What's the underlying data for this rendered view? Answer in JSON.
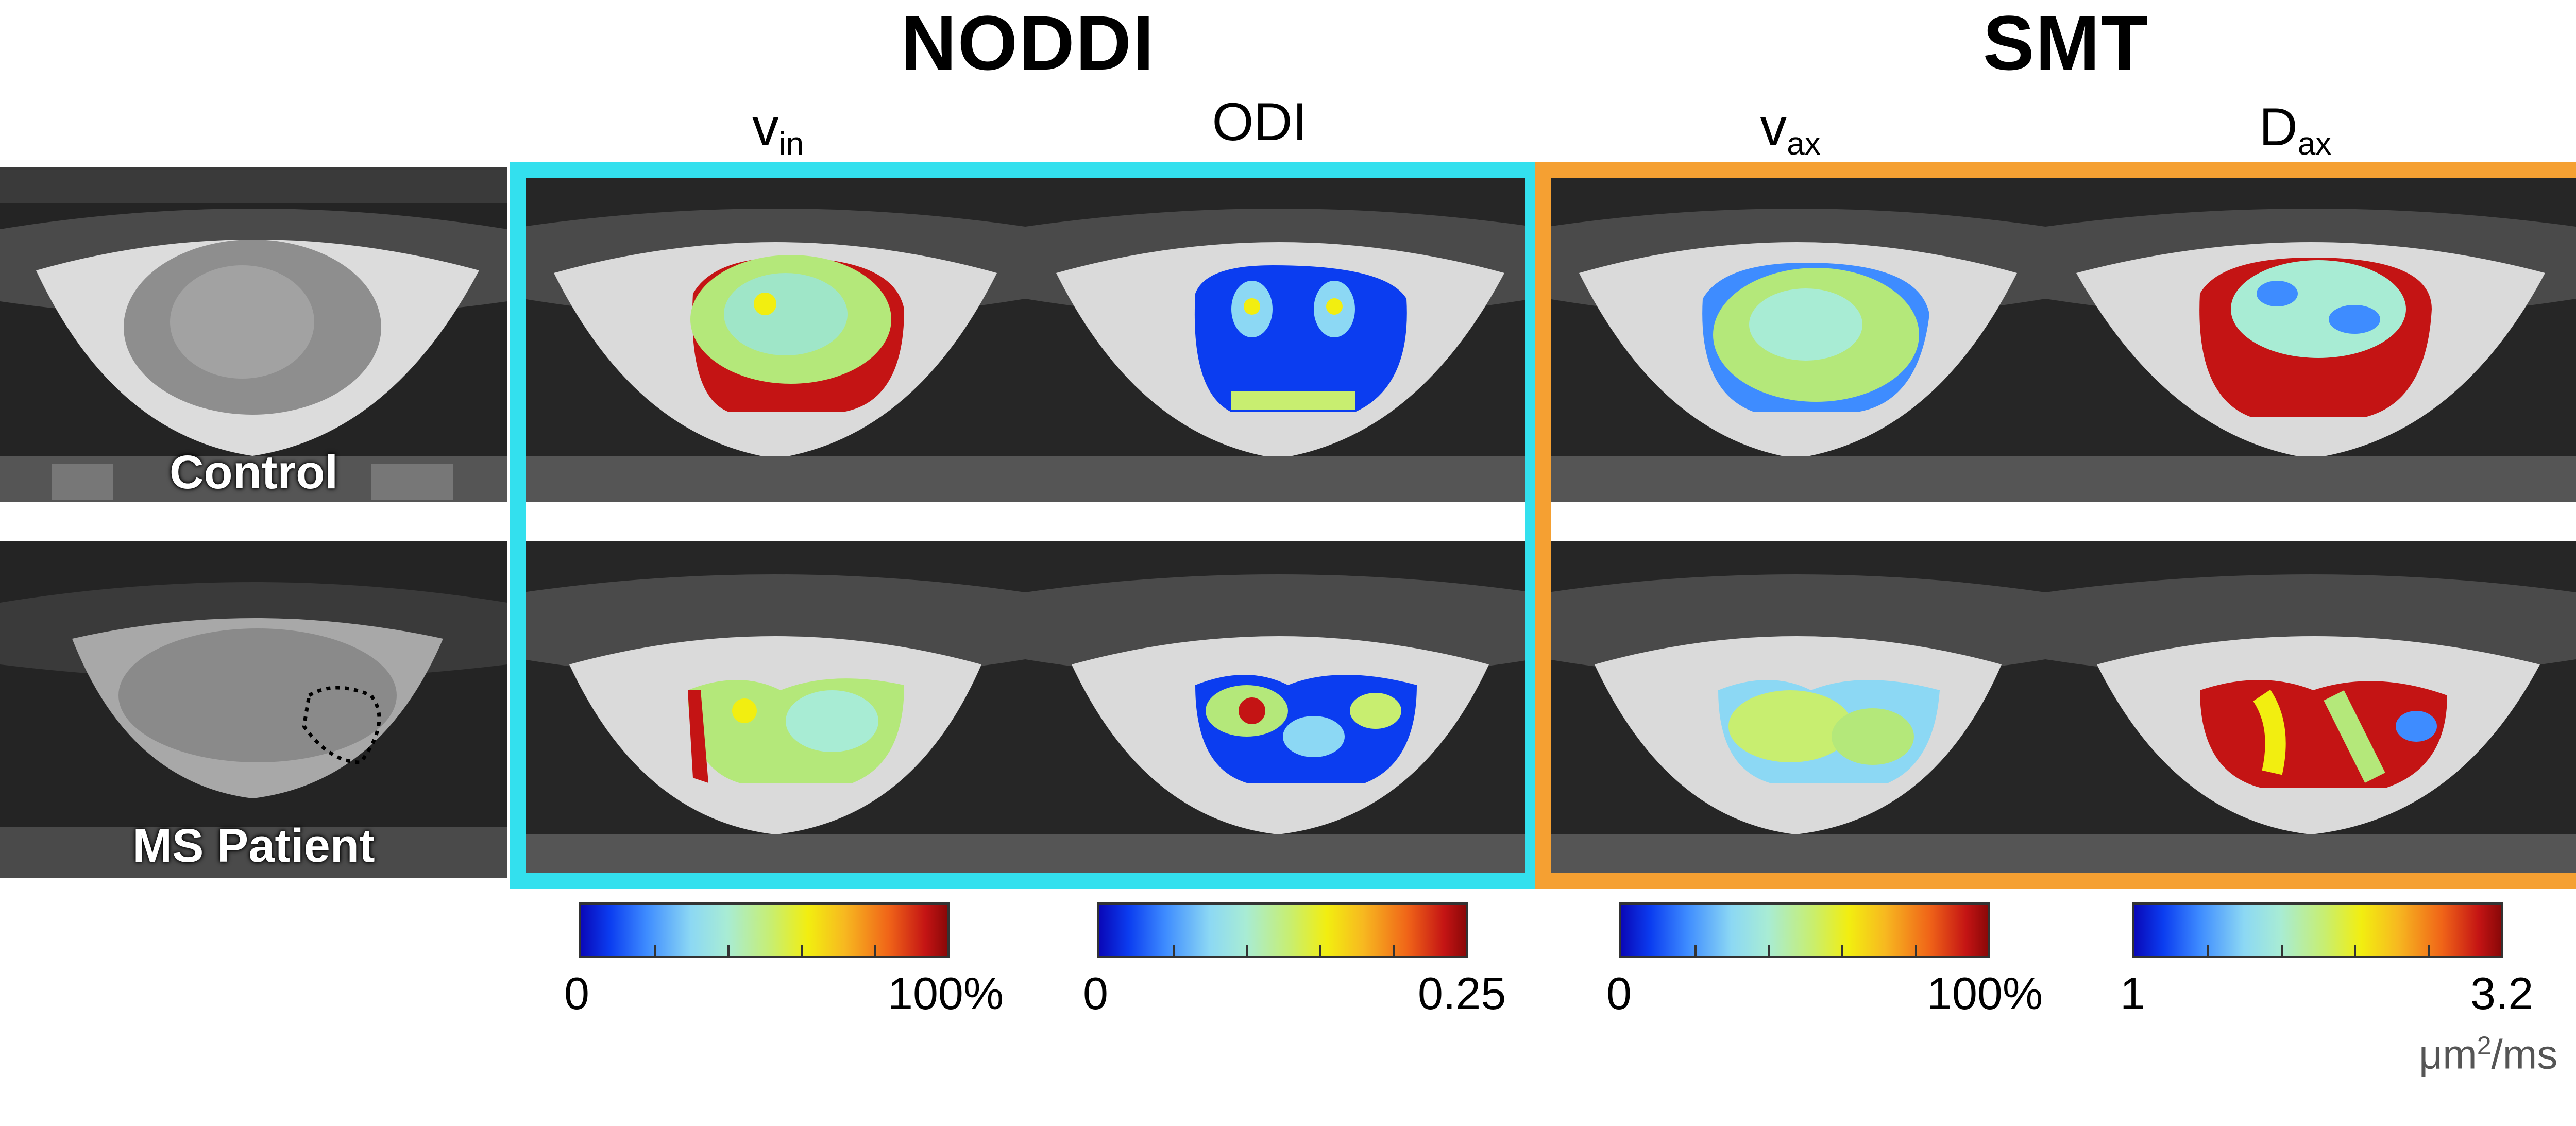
{
  "groups": {
    "noddi": {
      "title": "NODDI",
      "color": "#33e0ee"
    },
    "smt": {
      "title": "SMT",
      "color": "#f5a032"
    }
  },
  "columns": [
    {
      "id": "v_in",
      "main": "v",
      "sub": "in"
    },
    {
      "id": "odi",
      "main": "ODI",
      "sub": ""
    },
    {
      "id": "v_ax",
      "main": "v",
      "sub": "ax"
    },
    {
      "id": "d_ax",
      "main": "D",
      "sub": "ax"
    }
  ],
  "rows": {
    "control": "Control",
    "patient": "MS Patient"
  },
  "colorbars": [
    {
      "min": "0",
      "max": "100%"
    },
    {
      "min": "0",
      "max": "0.25"
    },
    {
      "min": "0",
      "max": "100%"
    },
    {
      "min": "1",
      "max": "3.2"
    }
  ],
  "units": {
    "dax_main": "μm",
    "dax_sup": "2",
    "dax_tail": "/ms"
  },
  "colors": {
    "low": "#0a08b8",
    "mid": "#a8ecd4",
    "high": "#c41414"
  }
}
